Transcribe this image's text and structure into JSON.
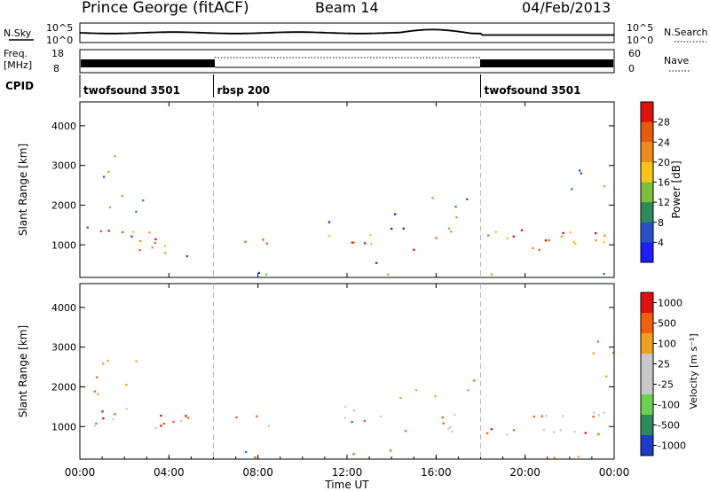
{
  "header": {
    "station": "Prince George (fitACF)",
    "beam": "Beam 14",
    "date": "04/Feb/2013"
  },
  "noise_panel": {
    "left_label": "N.Sky",
    "left_top": "10^5",
    "left_bottom": "10^0",
    "right_label": "N.Search",
    "right_top": "10^5",
    "right_bottom": "10^0"
  },
  "freq_panel": {
    "left_label_1": "Freq.",
    "left_label_2": "[MHz]",
    "left_top": "18",
    "left_bottom": "8",
    "right_label": "Nave",
    "right_top": "60",
    "right_bottom": "0"
  },
  "cpid": {
    "label": "CPID",
    "modes": [
      {
        "name": "twofsound 3501",
        "start_hour": 0
      },
      {
        "name": "rbsp 200",
        "start_hour": 6
      },
      {
        "name": "twofsound 3501",
        "start_hour": 18
      }
    ]
  },
  "colors": {
    "power": [
      "#1e1eff",
      "#2850c8",
      "#2e8b57",
      "#7fbf3f",
      "#f5c518",
      "#f08c1e",
      "#e85a10",
      "#e01010"
    ],
    "velocity": [
      "#1e3cc8",
      "#2e8b57",
      "#6fd04f",
      "#c8c8c8",
      "#c8c8c8",
      "#f0a020",
      "#f06010",
      "#e01010"
    ]
  },
  "chart_data": [
    {
      "type": "heatmap",
      "ylabel": "Slant Range [km]",
      "ylim": [
        180,
        4600
      ],
      "yticks": [
        "1000",
        "2000",
        "3000",
        "4000"
      ],
      "colorbar": {
        "label": "Power [dB]",
        "range": [
          0,
          32
        ],
        "ticks": [
          "4",
          "8",
          "12",
          "16",
          "20",
          "24",
          "28"
        ]
      }
    },
    {
      "type": "heatmap",
      "ylabel": "Slant Range [km]",
      "ylim": [
        180,
        4600
      ],
      "yticks": [
        "1000",
        "2000",
        "3000",
        "4000"
      ],
      "xlabel": "Time UT",
      "xlim": [
        0,
        24
      ],
      "xticks": [
        "00:00",
        "04:00",
        "08:00",
        "12:00",
        "16:00",
        "20:00",
        "00:00"
      ],
      "colorbar": {
        "label": "Velocity [m s⁻¹]",
        "ticks": [
          "1000",
          "500",
          "100",
          "25",
          "-25",
          "-100",
          "-500",
          "-1000"
        ]
      }
    }
  ]
}
